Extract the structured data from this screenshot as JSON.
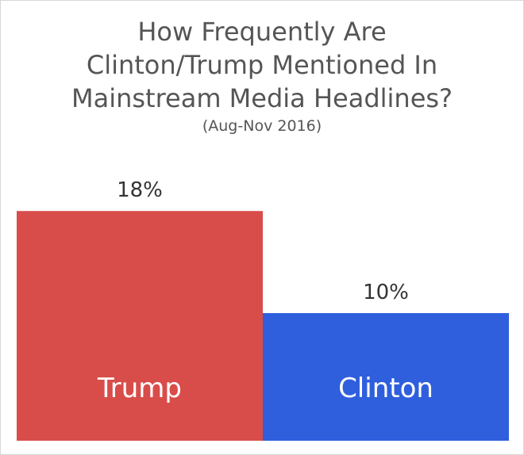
{
  "chart_data": {
    "type": "bar",
    "title": "How Frequently Are Clinton/Trump Mentioned In Mainstream Media Headlines?",
    "title_lines": [
      "How Frequently Are",
      "Clinton/Trump Mentioned In",
      "Mainstream Media Headlines?"
    ],
    "subtitle": "(Aug-Nov 2016)",
    "categories": [
      "Trump",
      "Clinton"
    ],
    "values": [
      18,
      10
    ],
    "value_labels": [
      "18%",
      "10%"
    ],
    "colors": [
      "#d84d4a",
      "#2f5fdd"
    ],
    "ylim": [
      0,
      23
    ],
    "grid": false,
    "legend": "none",
    "xlabel": "",
    "ylabel": ""
  }
}
